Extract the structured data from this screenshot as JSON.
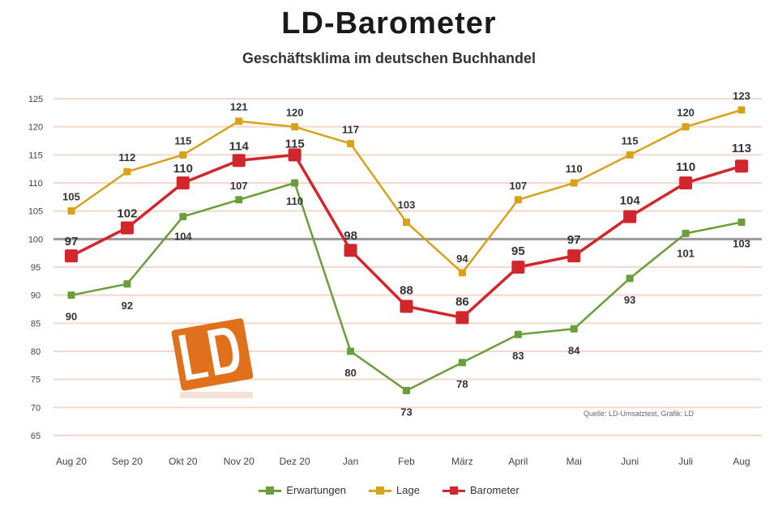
{
  "title": "LD-Barometer",
  "subtitle": "Geschäftsklima im deutschen Buchhandel",
  "source": "Quelle: LD-Umsatztest, Grafik: LD",
  "logo_text": "LD",
  "colors": {
    "erwartungen": "#6a9e3b",
    "lage": "#d8a21a",
    "barometer": "#d2262d",
    "baseline": "#9a9a9a",
    "grid": "#f3d8cc",
    "logo": "#e0701b"
  },
  "chart_data": {
    "type": "line",
    "title": "LD-Barometer",
    "subtitle": "Geschäftsklima im deutschen Buchhandel",
    "categories": [
      "Aug 20",
      "Sep 20",
      "Okt 20",
      "Nov 20",
      "Dez 20",
      "Jan",
      "Feb",
      "März",
      "April",
      "Mai",
      "Juni",
      "Juli",
      "Aug"
    ],
    "ylim": [
      65,
      125
    ],
    "yticks": [
      65,
      70,
      75,
      80,
      85,
      90,
      95,
      100,
      105,
      110,
      115,
      120,
      125
    ],
    "baseline": 100,
    "grid": true,
    "legend_position": "bottom",
    "series": [
      {
        "name": "Erwartungen",
        "color": "#6a9e3b",
        "values": [
          90,
          92,
          104,
          107,
          110,
          80,
          73,
          78,
          83,
          84,
          93,
          101,
          103
        ]
      },
      {
        "name": "Lage",
        "color": "#d8a21a",
        "values": [
          105,
          112,
          115,
          121,
          120,
          117,
          103,
          94,
          107,
          110,
          115,
          120,
          123
        ]
      },
      {
        "name": "Barometer",
        "color": "#d2262d",
        "values": [
          97,
          102,
          110,
          114,
          115,
          98,
          88,
          86,
          95,
          97,
          104,
          110,
          113
        ]
      }
    ]
  }
}
